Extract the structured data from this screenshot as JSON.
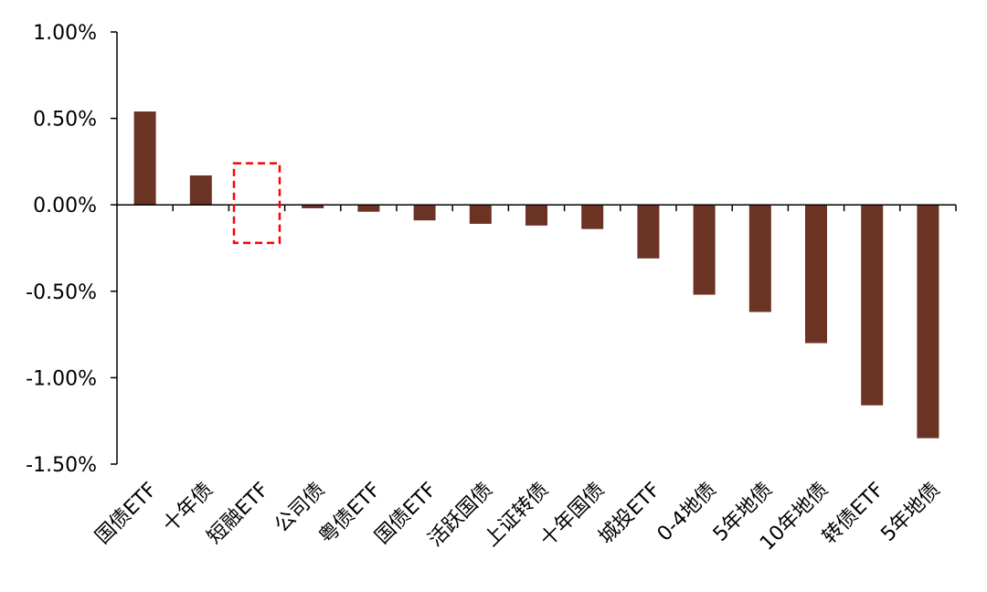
{
  "chart_data": {
    "type": "bar",
    "title": "",
    "xlabel": "",
    "ylabel": "",
    "categories": [
      "国债ETF",
      "十年债",
      "短融ETF",
      "公司债",
      "粤债ETF",
      "国债ETF",
      "活跃国债",
      "上证转债",
      "十年国债",
      "城投ETF",
      "0-4地债",
      "5年地债",
      "10年地债",
      "转债ETF",
      "5年地债"
    ],
    "values": [
      0.54,
      0.17,
      0.0,
      -0.02,
      -0.04,
      -0.09,
      -0.11,
      -0.12,
      -0.14,
      -0.31,
      -0.52,
      -0.62,
      -0.8,
      -1.16,
      -1.35
    ],
    "value_unit": "%",
    "ylim": [
      -1.5,
      1.0
    ],
    "yticks": [
      "1.00%",
      "0.50%",
      "0.00%",
      "-0.50%",
      "-1.00%",
      "-1.50%"
    ],
    "ytick_values": [
      1.0,
      0.5,
      0.0,
      -0.5,
      -1.0,
      -1.5
    ],
    "bar_color": "#6B3323",
    "highlight": {
      "category_index": 2,
      "style": "dashed-box",
      "color": "#FF0000",
      "range": [
        -0.22,
        0.24
      ]
    },
    "grid": false,
    "legend": "none"
  }
}
